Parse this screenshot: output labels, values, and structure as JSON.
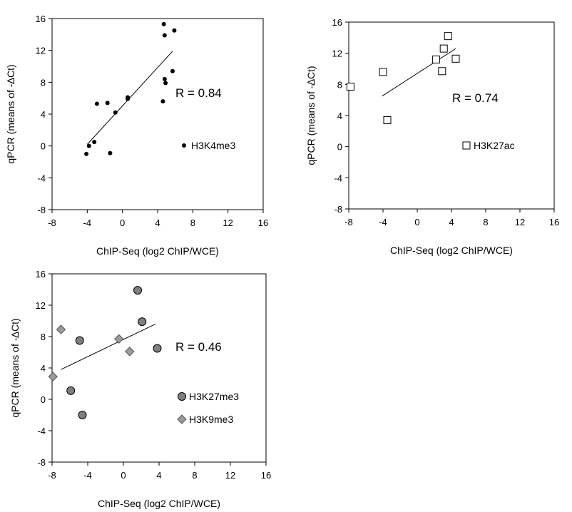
{
  "chart_data": [
    {
      "type": "scatter",
      "xlabel": "ChIP-Seq (log2 ChIP/WCE)",
      "ylabel": "qPCR (means of -∆Ct)",
      "xlim": [
        -8,
        16
      ],
      "ylim": [
        -8,
        16
      ],
      "xticks": [
        "-8",
        "-4",
        "0",
        "4",
        "8",
        "12",
        "16"
      ],
      "yticks": [
        "16",
        "12",
        "8",
        "4",
        "0",
        "-4",
        "-8"
      ],
      "annotation": "R = 0.84",
      "series": [
        {
          "name": "H3K4me3",
          "marker": "filled-circle",
          "color": "#000000",
          "x": [
            -4.1,
            -3.8,
            -3.2,
            -2.9,
            -1.7,
            -1.4,
            -0.8,
            0.6,
            0.6,
            4.6,
            4.7,
            4.8,
            4.8,
            4.9,
            5.7,
            5.9
          ],
          "y": [
            -1.0,
            0.0,
            0.5,
            5.3,
            5.4,
            -0.9,
            4.2,
            6.1,
            5.9,
            5.6,
            15.3,
            13.9,
            8.4,
            7.9,
            9.4,
            14.5
          ]
        }
      ],
      "fit": {
        "x": [
          -4.0,
          5.7
        ],
        "y": [
          0.2,
          11.9
        ]
      },
      "grid": false,
      "legend": "right-center"
    },
    {
      "type": "scatter",
      "xlabel": "ChIP-Seq (log2 ChIP/WCE)",
      "ylabel": "qPCR (means of -∆Ct)",
      "xlim": [
        -8,
        16
      ],
      "ylim": [
        -8,
        16
      ],
      "xticks": [
        "-8",
        "-4",
        "0",
        "4",
        "8",
        "12",
        "16"
      ],
      "yticks": [
        "16",
        "12",
        "8",
        "4",
        "0",
        "-4",
        "-8"
      ],
      "annotation": "R = 0.74",
      "series": [
        {
          "name": "H3K27ac",
          "marker": "open-square",
          "color": "#000000",
          "x": [
            -7.8,
            -4.0,
            -3.5,
            2.2,
            2.9,
            3.1,
            3.6,
            4.5
          ],
          "y": [
            7.7,
            9.6,
            3.4,
            11.2,
            9.7,
            12.6,
            14.2,
            11.3
          ]
        }
      ],
      "fit": {
        "x": [
          -4.1,
          4.5
        ],
        "y": [
          6.5,
          12.6
        ]
      },
      "grid": false,
      "legend": "right-center"
    },
    {
      "type": "scatter",
      "xlabel": "ChIP-Seq (log2 ChIP/WCE)",
      "ylabel": "qPCR (means of -∆Ct)",
      "xlim": [
        -8,
        16
      ],
      "ylim": [
        -8,
        16
      ],
      "xticks": [
        "-8",
        "-4",
        "0",
        "4",
        "8",
        "12",
        "16"
      ],
      "yticks": [
        "16",
        "12",
        "8",
        "4",
        "0",
        "-4",
        "-8"
      ],
      "annotation": "R = 0.46",
      "series": [
        {
          "name": "H3K27me3",
          "marker": "filled-circle",
          "color": "#7f7f7f",
          "x": [
            -5.9,
            -4.9,
            -4.6,
            1.6,
            2.1,
            3.8
          ],
          "y": [
            1.1,
            7.5,
            -2.0,
            13.9,
            9.9,
            6.5
          ]
        },
        {
          "name": "H3K9me3",
          "marker": "diamond",
          "color": "#9a9a9a",
          "x": [
            -7.9,
            -7.0,
            -0.5,
            0.7
          ],
          "y": [
            2.9,
            8.9,
            7.7,
            6.1
          ]
        }
      ],
      "fit": {
        "x": [
          -7.0,
          3.6
        ],
        "y": [
          3.8,
          9.6
        ]
      },
      "grid": false,
      "legend": "right-center"
    }
  ]
}
